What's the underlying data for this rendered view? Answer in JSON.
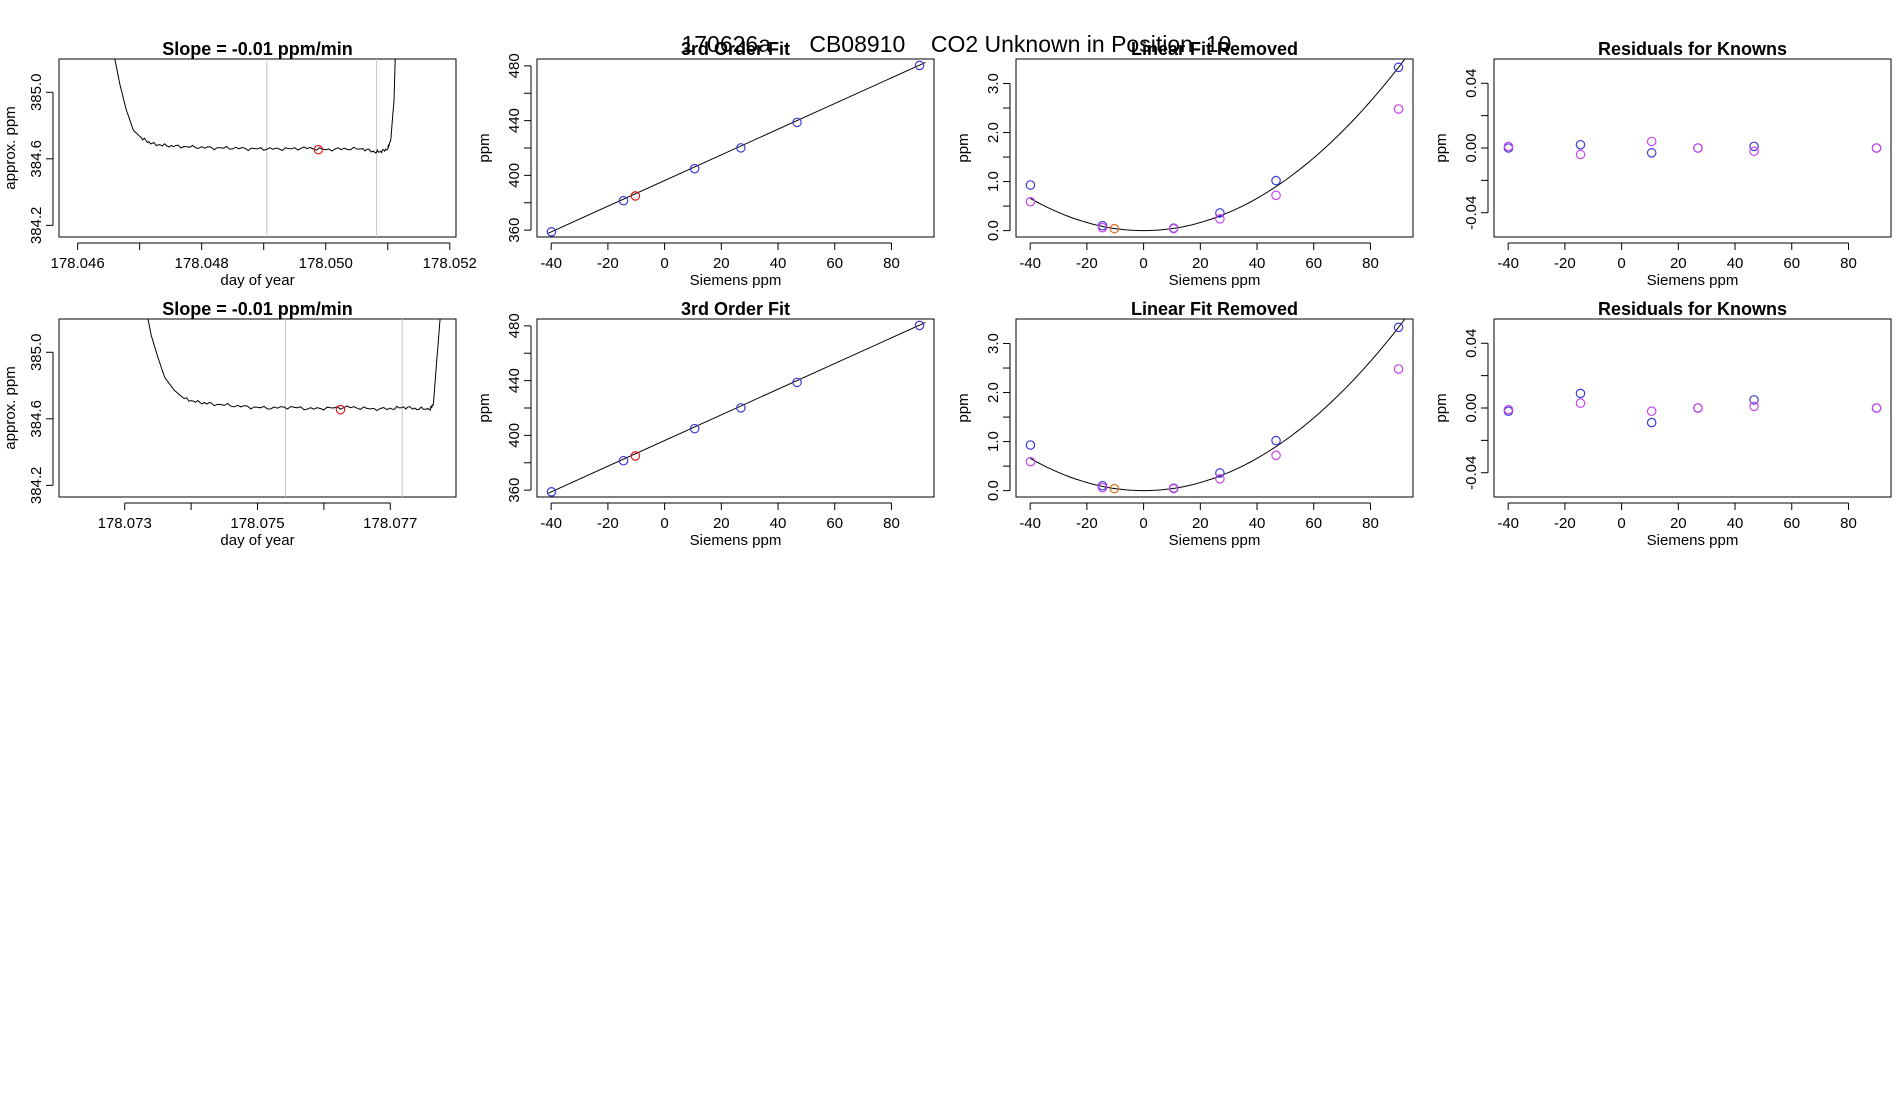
{
  "title": {
    "date_code": "170626a",
    "tank_id": "CB08910",
    "description": "CO2 Unknown in Position",
    "position": "10"
  },
  "colors": {
    "trace": "#000000",
    "unknown_point": "#e41a1c",
    "known_blue": "#3b3bd6",
    "known_magenta": "#cc44ee",
    "unknown_orange": "#e07020",
    "guide_line": "#c8c8c8",
    "fit_curve": "#000000"
  },
  "chart_data": [
    {
      "row": 1,
      "panel": 1,
      "type": "line",
      "title": "Slope =  -0.01  ppm/min",
      "xlabel": "day of year",
      "ylabel": "approx. ppm",
      "xlim": [
        178.0457,
        178.0521
      ],
      "ylim": [
        384.13,
        385.2
      ],
      "xticks": [
        "178.046",
        "178.048",
        "178.050",
        "178.052"
      ],
      "xtick_values": [
        178.046,
        178.048,
        178.05,
        178.052
      ],
      "xtick_minor": [
        178.047,
        178.049,
        178.051
      ],
      "yticks": [
        "384.2",
        "384.6",
        "385.0"
      ],
      "ytick_values": [
        384.2,
        384.6,
        385.0
      ],
      "guide_lines_x": [
        178.04905,
        178.05082
      ],
      "series": [
        {
          "x": [
            178.0466,
            178.04668,
            178.04678,
            178.0469,
            178.04705,
            178.0472,
            178.0474,
            178.04762,
            178.0479,
            178.0482,
            178.0485,
            178.0488,
            178.0491,
            178.0494,
            178.0497,
            178.05,
            178.0503,
            178.0506,
            178.0508,
            178.0509,
            178.051,
            178.05105,
            178.0511,
            178.05112
          ],
          "y": [
            385.2,
            385.05,
            384.9,
            384.77,
            384.72,
            384.69,
            384.68,
            384.675,
            384.67,
            384.665,
            384.665,
            384.66,
            384.66,
            384.66,
            384.665,
            384.655,
            384.66,
            384.66,
            384.64,
            384.645,
            384.66,
            384.72,
            384.95,
            385.2
          ]
        }
      ],
      "points": [
        {
          "x": 178.04988,
          "y": 384.655,
          "color": "unknown_point"
        }
      ]
    },
    {
      "row": 1,
      "panel": 2,
      "type": "scatter",
      "title": "3rd Order Fit",
      "xlabel": "Siemens ppm",
      "ylabel": "ppm",
      "xlim": [
        -45,
        95
      ],
      "ylim": [
        355,
        485
      ],
      "xticks": [
        "-40",
        "-20",
        "0",
        "20",
        "40",
        "60",
        "80"
      ],
      "xtick_values": [
        -40,
        -20,
        0,
        20,
        40,
        60,
        80
      ],
      "yticks": [
        "360",
        "400",
        "440",
        "480"
      ],
      "ytick_values": [
        360,
        400,
        440,
        480
      ],
      "ytick_minor": [
        380,
        420,
        460
      ],
      "fit_line": {
        "x": [
          -41,
          92
        ],
        "y": [
          357.8,
          482.5
        ]
      },
      "points": [
        {
          "x": -39.9,
          "y": 358.8,
          "color": "known_blue"
        },
        {
          "x": -14.5,
          "y": 381.5,
          "color": "known_blue"
        },
        {
          "x": 10.6,
          "y": 404.9,
          "color": "known_blue"
        },
        {
          "x": 26.9,
          "y": 420.1,
          "color": "known_blue"
        },
        {
          "x": 46.7,
          "y": 438.7,
          "color": "known_blue"
        },
        {
          "x": 89.9,
          "y": 480.3,
          "color": "known_blue"
        },
        {
          "x": -10.3,
          "y": 385.0,
          "color": "unknown_point"
        }
      ]
    },
    {
      "row": 1,
      "panel": 3,
      "type": "scatter",
      "title": "Linear Fit Removed",
      "xlabel": "Siemens ppm",
      "ylabel": "ppm",
      "xlim": [
        -45,
        95
      ],
      "ylim": [
        -0.13,
        3.5
      ],
      "xticks": [
        "-40",
        "-20",
        "0",
        "20",
        "40",
        "60",
        "80"
      ],
      "xtick_values": [
        -40,
        -20,
        0,
        20,
        40,
        60,
        80
      ],
      "yticks": [
        "0.0",
        "1.0",
        "2.0",
        "3.0"
      ],
      "ytick_values": [
        0,
        1,
        2,
        3
      ],
      "ytick_minor": [
        0.5,
        1.5,
        2.5
      ],
      "fit_curve": {
        "kind": "quadratic",
        "a": 0.000412,
        "b": 0,
        "c": 0,
        "x_range": [
          -40,
          92
        ]
      },
      "points": [
        {
          "x": -39.9,
          "y": 0.93,
          "color": "known_blue"
        },
        {
          "x": -14.5,
          "y": 0.1,
          "color": "known_blue"
        },
        {
          "x": 10.6,
          "y": 0.05,
          "color": "known_blue"
        },
        {
          "x": 26.9,
          "y": 0.36,
          "color": "known_blue"
        },
        {
          "x": 46.7,
          "y": 1.02,
          "color": "known_blue"
        },
        {
          "x": 89.9,
          "y": 3.33,
          "color": "known_blue"
        },
        {
          "x": -39.9,
          "y": 0.59,
          "color": "known_magenta"
        },
        {
          "x": -14.5,
          "y": 0.06,
          "color": "known_magenta"
        },
        {
          "x": 10.6,
          "y": 0.04,
          "color": "known_magenta"
        },
        {
          "x": 26.9,
          "y": 0.24,
          "color": "known_magenta"
        },
        {
          "x": 46.7,
          "y": 0.72,
          "color": "known_magenta"
        },
        {
          "x": 89.9,
          "y": 2.48,
          "color": "known_magenta"
        },
        {
          "x": -10.3,
          "y": 0.04,
          "color": "unknown_orange"
        }
      ]
    },
    {
      "row": 1,
      "panel": 4,
      "type": "scatter",
      "title": "Residuals for Knowns",
      "xlabel": "Siemens ppm",
      "ylabel": "ppm",
      "xlim": [
        -45,
        95
      ],
      "ylim": [
        -0.055,
        0.055
      ],
      "xticks": [
        "-40",
        "-20",
        "0",
        "20",
        "40",
        "60",
        "80"
      ],
      "xtick_values": [
        -40,
        -20,
        0,
        20,
        40,
        60,
        80
      ],
      "yticks": [
        "-0.04",
        "0.00",
        "0.04"
      ],
      "ytick_values": [
        -0.04,
        0,
        0.04
      ],
      "ytick_minor": [
        -0.02,
        0.02
      ],
      "points": [
        {
          "x": -39.9,
          "y": 0.0,
          "color": "known_blue"
        },
        {
          "x": -14.5,
          "y": 0.002,
          "color": "known_blue"
        },
        {
          "x": 10.6,
          "y": -0.003,
          "color": "known_blue"
        },
        {
          "x": 26.9,
          "y": 0.0,
          "color": "known_blue"
        },
        {
          "x": 46.7,
          "y": 0.001,
          "color": "known_blue"
        },
        {
          "x": 89.9,
          "y": 0.0,
          "color": "known_blue"
        },
        {
          "x": -39.9,
          "y": 0.001,
          "color": "known_magenta"
        },
        {
          "x": -14.5,
          "y": -0.004,
          "color": "known_magenta"
        },
        {
          "x": 10.6,
          "y": 0.004,
          "color": "known_magenta"
        },
        {
          "x": 26.9,
          "y": 0.0,
          "color": "known_magenta"
        },
        {
          "x": 46.7,
          "y": -0.002,
          "color": "known_magenta"
        },
        {
          "x": 89.9,
          "y": 0.0,
          "color": "known_magenta"
        }
      ]
    },
    {
      "row": 2,
      "panel": 1,
      "type": "line",
      "title": "Slope =  -0.01  ppm/min",
      "xlabel": "day of year",
      "ylabel": "approx. ppm",
      "xlim": [
        178.07201,
        178.07799
      ],
      "ylim": [
        384.13,
        385.2
      ],
      "xticks": [
        "178.073",
        "178.075",
        "178.077"
      ],
      "xtick_values": [
        178.073,
        178.075,
        178.077
      ],
      "xtick_minor": [
        178.074,
        178.076
      ],
      "yticks": [
        "384.2",
        "384.6",
        "385.0"
      ],
      "ytick_values": [
        384.2,
        384.6,
        385.0
      ],
      "guide_lines_x": [
        178.07542,
        178.07718
      ],
      "series": [
        {
          "x": [
            178.07335,
            178.0734,
            178.0735,
            178.0736,
            178.07375,
            178.0739,
            178.0741,
            178.0743,
            178.0746,
            178.0749,
            178.0752,
            178.0755,
            178.0758,
            178.0761,
            178.0764,
            178.0767,
            178.077,
            178.0772,
            178.0774,
            178.0776,
            178.07765,
            178.0777,
            178.07775
          ],
          "y": [
            385.2,
            385.1,
            384.97,
            384.85,
            384.77,
            384.72,
            384.7,
            384.69,
            384.68,
            384.67,
            384.665,
            384.67,
            384.66,
            384.665,
            384.67,
            384.66,
            384.66,
            384.67,
            384.66,
            384.66,
            384.69,
            384.95,
            385.2
          ]
        }
      ],
      "points": [
        {
          "x": 178.07625,
          "y": 384.655,
          "color": "unknown_point"
        }
      ]
    },
    {
      "row": 2,
      "panel": 2,
      "type": "scatter",
      "title": "3rd Order Fit",
      "xlabel": "Siemens ppm",
      "ylabel": "ppm",
      "xlim": [
        -45,
        95
      ],
      "ylim": [
        355,
        485
      ],
      "xticks": [
        "-40",
        "-20",
        "0",
        "20",
        "40",
        "60",
        "80"
      ],
      "xtick_values": [
        -40,
        -20,
        0,
        20,
        40,
        60,
        80
      ],
      "yticks": [
        "360",
        "400",
        "440",
        "480"
      ],
      "ytick_values": [
        360,
        400,
        440,
        480
      ],
      "ytick_minor": [
        380,
        420,
        460
      ],
      "fit_line": {
        "x": [
          -41,
          92
        ],
        "y": [
          357.8,
          482.5
        ]
      },
      "points": [
        {
          "x": -39.9,
          "y": 358.8,
          "color": "known_blue"
        },
        {
          "x": -14.5,
          "y": 381.5,
          "color": "known_blue"
        },
        {
          "x": 10.6,
          "y": 404.9,
          "color": "known_blue"
        },
        {
          "x": 26.9,
          "y": 420.1,
          "color": "known_blue"
        },
        {
          "x": 46.7,
          "y": 438.7,
          "color": "known_blue"
        },
        {
          "x": 89.9,
          "y": 480.3,
          "color": "known_blue"
        },
        {
          "x": -10.3,
          "y": 385.0,
          "color": "unknown_point"
        }
      ]
    },
    {
      "row": 2,
      "panel": 3,
      "type": "scatter",
      "title": "Linear Fit Removed",
      "xlabel": "Siemens ppm",
      "ylabel": "ppm",
      "xlim": [
        -45,
        95
      ],
      "ylim": [
        -0.13,
        3.5
      ],
      "xticks": [
        "-40",
        "-20",
        "0",
        "20",
        "40",
        "60",
        "80"
      ],
      "xtick_values": [
        -40,
        -20,
        0,
        20,
        40,
        60,
        80
      ],
      "yticks": [
        "0.0",
        "1.0",
        "2.0",
        "3.0"
      ],
      "ytick_values": [
        0,
        1,
        2,
        3
      ],
      "ytick_minor": [
        0.5,
        1.5,
        2.5
      ],
      "fit_curve": {
        "kind": "quadratic",
        "a": 0.000412,
        "b": 0,
        "c": 0,
        "x_range": [
          -40,
          92
        ]
      },
      "points": [
        {
          "x": -39.9,
          "y": 0.93,
          "color": "known_blue"
        },
        {
          "x": -14.5,
          "y": 0.1,
          "color": "known_blue"
        },
        {
          "x": 10.6,
          "y": 0.05,
          "color": "known_blue"
        },
        {
          "x": 26.9,
          "y": 0.36,
          "color": "known_blue"
        },
        {
          "x": 46.7,
          "y": 1.02,
          "color": "known_blue"
        },
        {
          "x": 89.9,
          "y": 3.33,
          "color": "known_blue"
        },
        {
          "x": -39.9,
          "y": 0.59,
          "color": "known_magenta"
        },
        {
          "x": -14.5,
          "y": 0.06,
          "color": "known_magenta"
        },
        {
          "x": 10.6,
          "y": 0.04,
          "color": "known_magenta"
        },
        {
          "x": 26.9,
          "y": 0.24,
          "color": "known_magenta"
        },
        {
          "x": 46.7,
          "y": 0.72,
          "color": "known_magenta"
        },
        {
          "x": 89.9,
          "y": 2.48,
          "color": "known_magenta"
        },
        {
          "x": -10.3,
          "y": 0.04,
          "color": "unknown_orange"
        }
      ]
    },
    {
      "row": 2,
      "panel": 4,
      "type": "scatter",
      "title": "Residuals for Knowns",
      "xlabel": "Siemens ppm",
      "ylabel": "ppm",
      "xlim": [
        -45,
        95
      ],
      "ylim": [
        -0.055,
        0.055
      ],
      "xticks": [
        "-40",
        "-20",
        "0",
        "20",
        "40",
        "60",
        "80"
      ],
      "xtick_values": [
        -40,
        -20,
        0,
        20,
        40,
        60,
        80
      ],
      "yticks": [
        "-0.04",
        "0.00",
        "0.04"
      ],
      "ytick_values": [
        -0.04,
        0,
        0.04
      ],
      "ytick_minor": [
        -0.02,
        0.02
      ],
      "points": [
        {
          "x": -39.9,
          "y": -0.002,
          "color": "known_blue"
        },
        {
          "x": -14.5,
          "y": 0.009,
          "color": "known_blue"
        },
        {
          "x": 10.6,
          "y": -0.009,
          "color": "known_blue"
        },
        {
          "x": 26.9,
          "y": 0.0,
          "color": "known_blue"
        },
        {
          "x": 46.7,
          "y": 0.005,
          "color": "known_blue"
        },
        {
          "x": 89.9,
          "y": 0.0,
          "color": "known_blue"
        },
        {
          "x": -39.9,
          "y": -0.001,
          "color": "known_magenta"
        },
        {
          "x": -14.5,
          "y": 0.003,
          "color": "known_magenta"
        },
        {
          "x": 10.6,
          "y": -0.002,
          "color": "known_magenta"
        },
        {
          "x": 26.9,
          "y": 0.0,
          "color": "known_magenta"
        },
        {
          "x": 46.7,
          "y": 0.001,
          "color": "known_magenta"
        },
        {
          "x": 89.9,
          "y": 0.0,
          "color": "known_magenta"
        }
      ]
    }
  ]
}
